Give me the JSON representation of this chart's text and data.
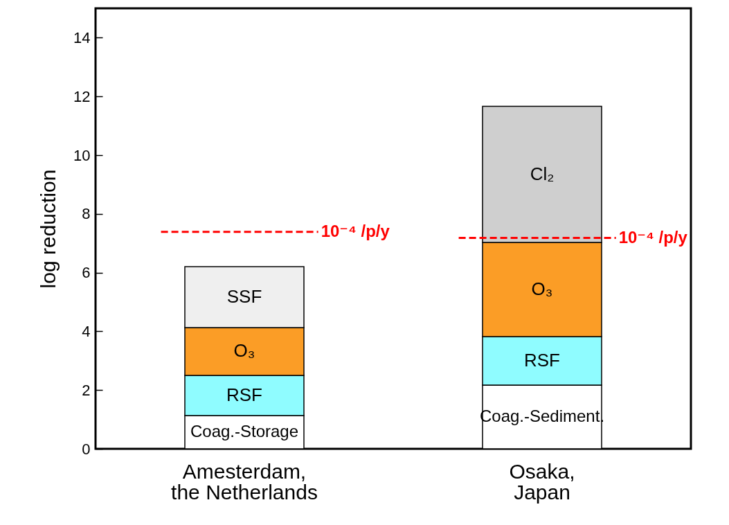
{
  "chart_data": {
    "type": "bar",
    "stacked": true,
    "ylabel": "log reduction",
    "categories": [
      "Amesterdam,\nthe Netherlands",
      "Osaka,\nJapan"
    ],
    "series": [
      {
        "color": "#ffffff",
        "values": [
          1.13,
          2.17
        ]
      },
      {
        "name": "RSF",
        "color": "#8ffcff",
        "values": [
          1.37,
          1.65
        ]
      },
      {
        "name": "O₃",
        "color": "#fb9d26",
        "values": [
          1.63,
          3.21
        ]
      },
      {
        "name": "SSF",
        "color": "#efefef",
        "values": [
          2.07,
          null
        ]
      },
      {
        "name": "Cl₂",
        "color": "#cfcfcf",
        "values": [
          null,
          4.63
        ]
      }
    ],
    "ylim": [
      0,
      15
    ],
    "yticks": [
      0,
      2,
      4,
      6,
      8,
      10,
      12,
      14
    ],
    "grid": false,
    "legend": false,
    "ref_lines": [
      {
        "axis": "y",
        "value": 7.39,
        "label": "10⁻⁴ /p/y",
        "color": "#ff0000",
        "line_style": "dashed"
      },
      {
        "axis": "y",
        "value": 7.18,
        "label": "10⁻⁴ /p/y",
        "color": "#ff0000",
        "line_style": "dashed"
      }
    ],
    "annotations": [
      "Coag.-Storage",
      "Coag.-Sediment."
    ]
  }
}
